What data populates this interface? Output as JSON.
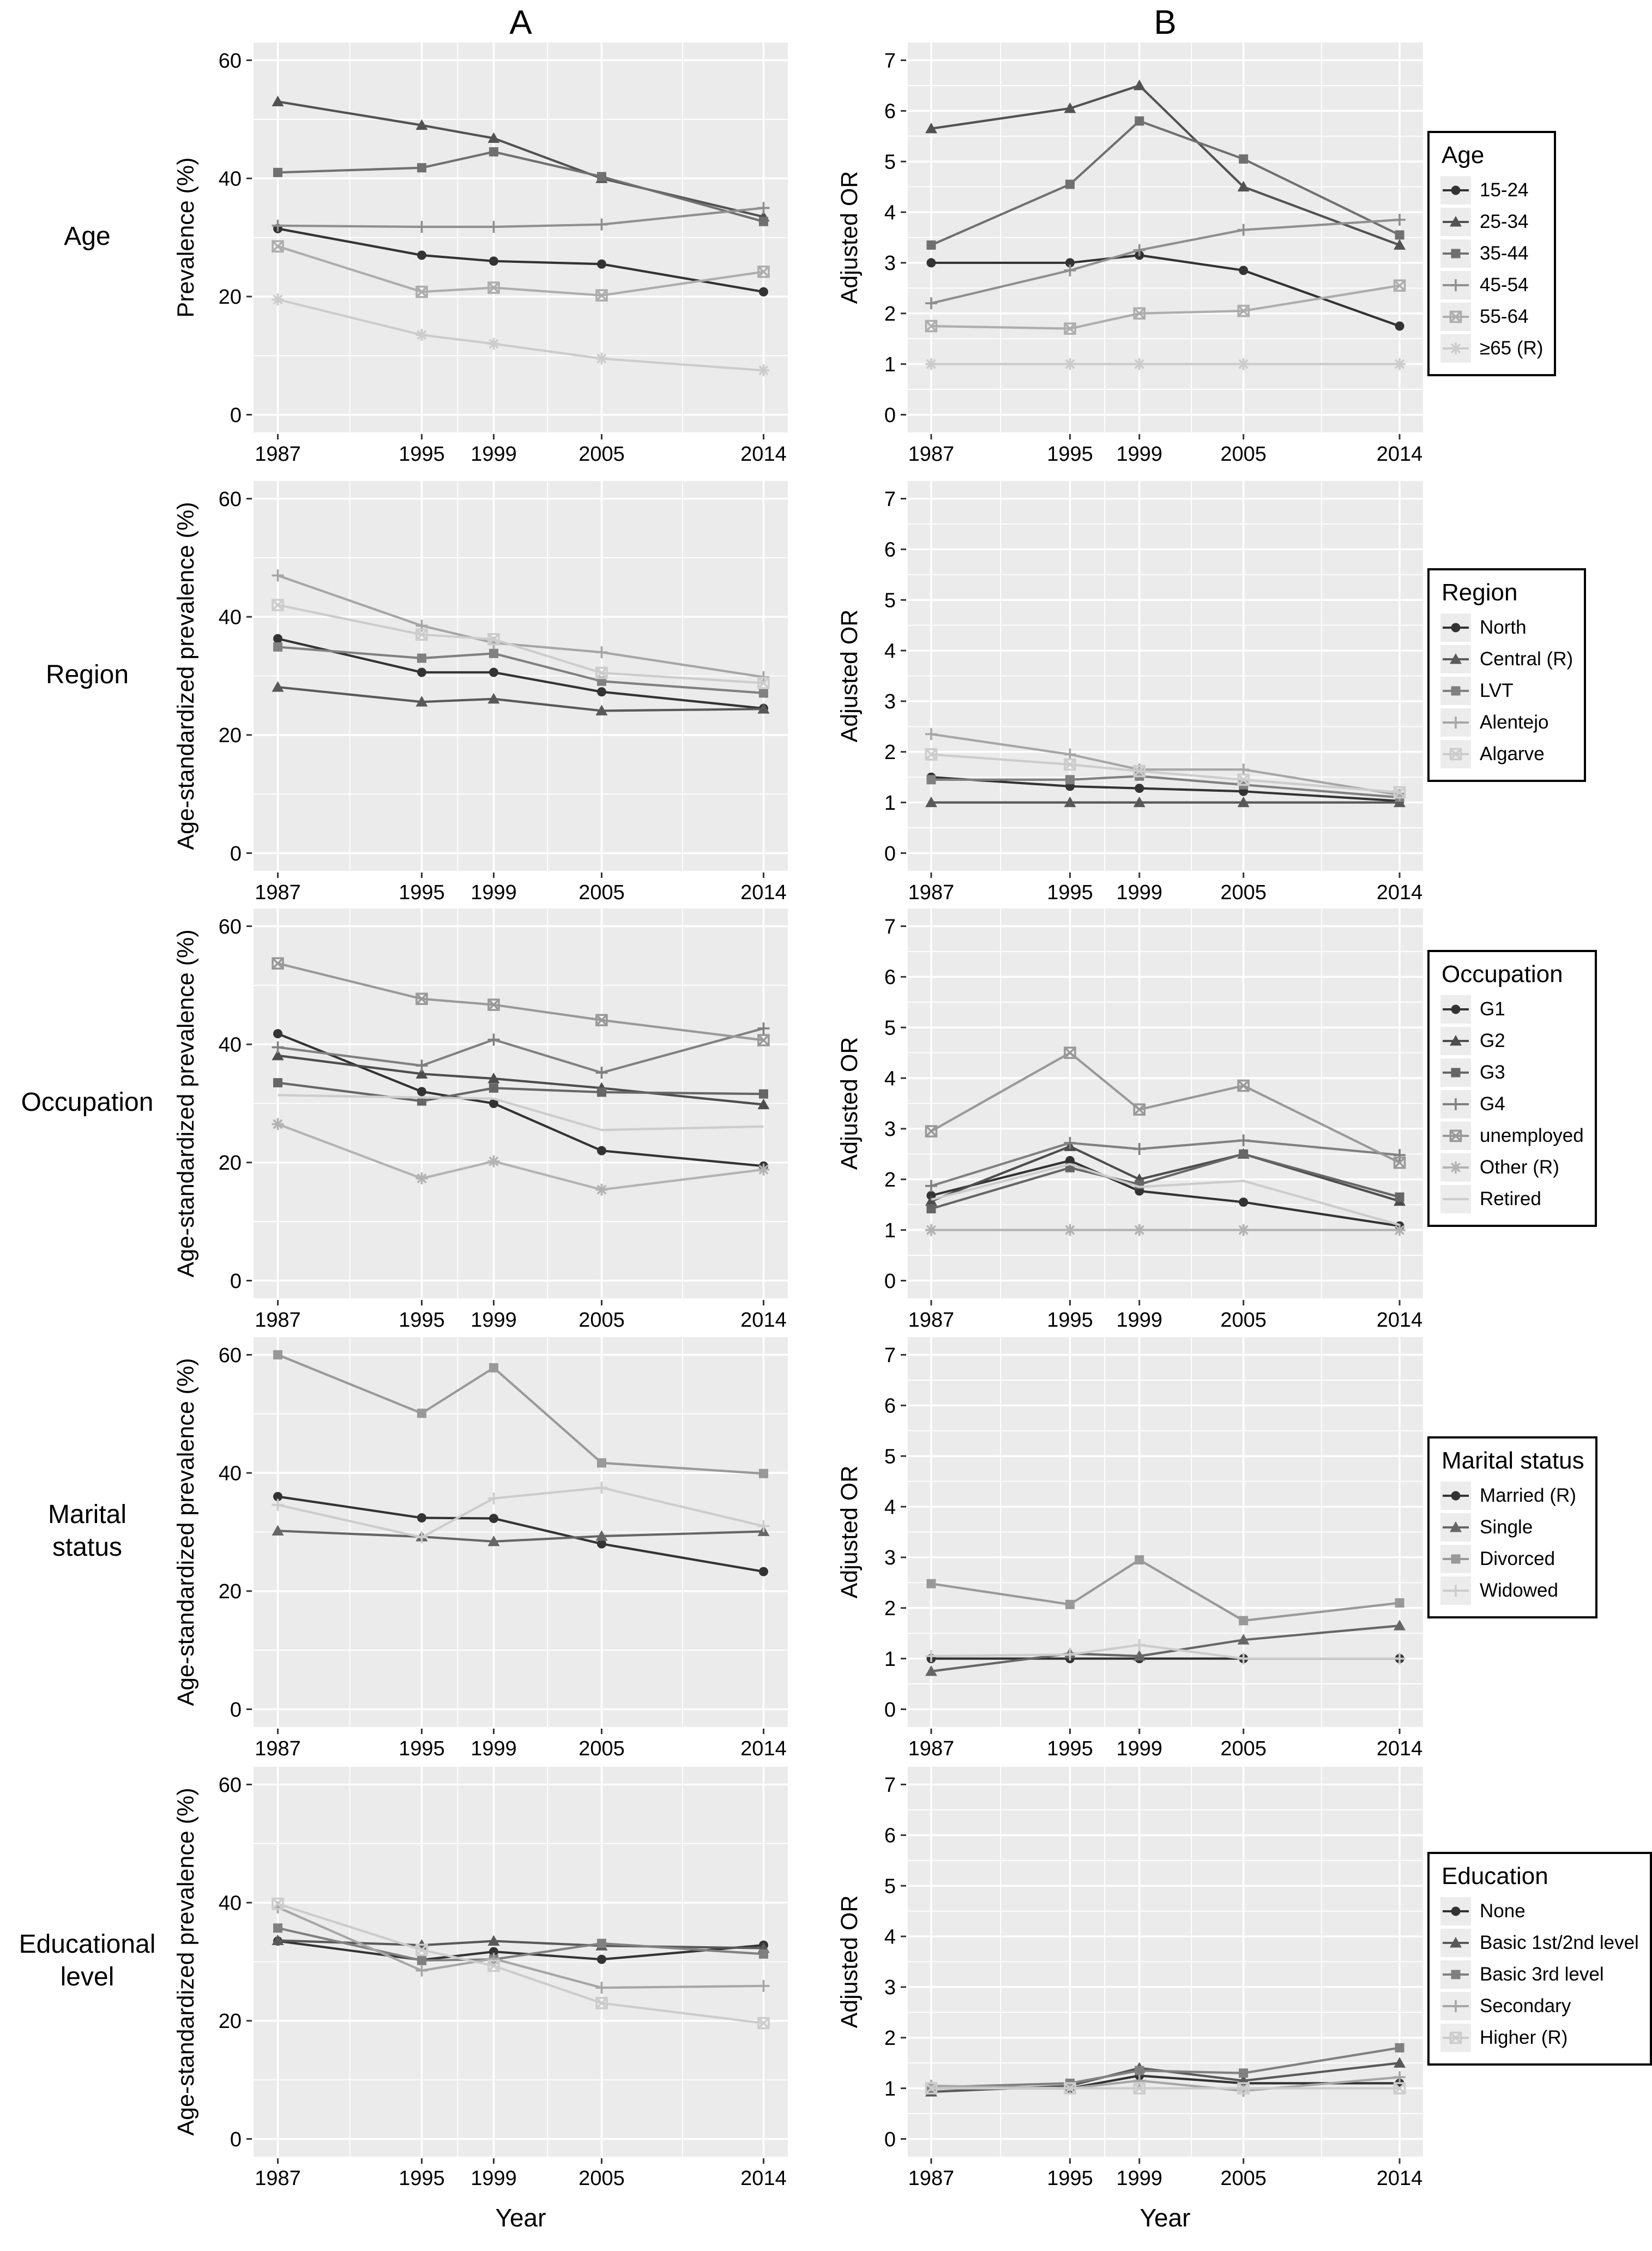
{
  "figure": {
    "panel_a_title": "A",
    "panel_b_title": "B",
    "x_label": "Year",
    "panel_background": "#EBEBEB",
    "gridline_color": "#FFFFFF",
    "rows": [
      {
        "label": "Age",
        "legend_title": "Age"
      },
      {
        "label": "Region",
        "legend_title": "Region"
      },
      {
        "label": "Occupation",
        "legend_title": "Occupation"
      },
      {
        "label": "Marital\nstatus",
        "legend_title": "Marital status"
      },
      {
        "label": "Educational\nlevel",
        "legend_title": "Education"
      }
    ]
  },
  "chart_data": [
    {
      "id": "age-a",
      "row": "Age",
      "panel": "A",
      "type": "line",
      "ylabel": "Prevalence (%)",
      "xlabel": "Year",
      "x": [
        1987,
        1995,
        1999,
        2005,
        2014
      ],
      "ylim": [
        0,
        60
      ],
      "yticks": [
        0,
        20,
        40,
        60
      ],
      "series": [
        {
          "name": "15-24",
          "marker": "circle",
          "color": "#333333",
          "values": [
            31.5,
            27.0,
            26.0,
            25.5,
            20.8
          ]
        },
        {
          "name": "25-34",
          "marker": "triangle",
          "color": "#525252",
          "values": [
            53.0,
            49.0,
            46.8,
            40.0,
            33.5
          ]
        },
        {
          "name": "35-44",
          "marker": "square",
          "color": "#707070",
          "values": [
            41.0,
            41.8,
            44.5,
            40.3,
            32.7
          ]
        },
        {
          "name": "45-54",
          "marker": "plus",
          "color": "#8F8F8F",
          "values": [
            32.0,
            31.8,
            31.8,
            32.2,
            35.0
          ]
        },
        {
          "name": "55-64",
          "marker": "boxx",
          "color": "#ADADAD",
          "values": [
            28.5,
            20.8,
            21.5,
            20.2,
            24.2
          ]
        },
        {
          "name": "≥65 (R)",
          "marker": "asterisk",
          "color": "#CCCCCC",
          "values": [
            19.5,
            13.5,
            12.0,
            9.5,
            7.5
          ]
        }
      ]
    },
    {
      "id": "age-b",
      "row": "Age",
      "panel": "B",
      "type": "line",
      "ylabel": "Adjusted OR",
      "xlabel": "Year",
      "x": [
        1987,
        1995,
        1999,
        2005,
        2014
      ],
      "ylim": [
        0,
        7
      ],
      "yticks": [
        0,
        1,
        2,
        3,
        4,
        5,
        6,
        7
      ],
      "series": [
        {
          "name": "15-24",
          "marker": "circle",
          "color": "#333333",
          "values": [
            3.0,
            3.0,
            3.15,
            2.85,
            1.75
          ]
        },
        {
          "name": "25-34",
          "marker": "triangle",
          "color": "#525252",
          "values": [
            5.65,
            6.05,
            6.5,
            4.5,
            3.35
          ]
        },
        {
          "name": "35-44",
          "marker": "square",
          "color": "#707070",
          "values": [
            3.35,
            4.55,
            5.8,
            5.05,
            3.55
          ]
        },
        {
          "name": "45-54",
          "marker": "plus",
          "color": "#8F8F8F",
          "values": [
            2.2,
            2.85,
            3.25,
            3.65,
            3.85
          ]
        },
        {
          "name": "55-64",
          "marker": "boxx",
          "color": "#ADADAD",
          "values": [
            1.75,
            1.7,
            2.0,
            2.05,
            2.55
          ]
        },
        {
          "name": "≥65 (R)",
          "marker": "asterisk",
          "color": "#CCCCCC",
          "values": [
            1.0,
            1.0,
            1.0,
            1.0,
            1.0
          ]
        }
      ]
    },
    {
      "id": "region-a",
      "row": "Region",
      "panel": "A",
      "type": "line",
      "ylabel": "Age-standardized prevalence (%)",
      "xlabel": "Year",
      "x": [
        1987,
        1995,
        1999,
        2005,
        2014
      ],
      "ylim": [
        0,
        60
      ],
      "yticks": [
        0,
        20,
        40,
        60
      ],
      "series": [
        {
          "name": "North",
          "marker": "circle",
          "color": "#333333",
          "values": [
            36.3,
            30.6,
            30.6,
            27.3,
            24.5
          ]
        },
        {
          "name": "Central (R)",
          "marker": "triangle",
          "color": "#595959",
          "values": [
            28.1,
            25.6,
            26.1,
            24.1,
            24.4
          ]
        },
        {
          "name": "LVT",
          "marker": "square",
          "color": "#808080",
          "values": [
            34.9,
            33.0,
            33.8,
            29.1,
            27.1
          ]
        },
        {
          "name": "Alentejo",
          "marker": "plus",
          "color": "#A6A6A6",
          "values": [
            47.0,
            38.5,
            35.6,
            34.0,
            29.8
          ]
        },
        {
          "name": "Algarve",
          "marker": "boxx",
          "color": "#CCCCCC",
          "values": [
            42.0,
            37.0,
            36.2,
            30.5,
            28.8
          ]
        }
      ]
    },
    {
      "id": "region-b",
      "row": "Region",
      "panel": "B",
      "type": "line",
      "ylabel": "Adjusted OR",
      "xlabel": "Year",
      "x": [
        1987,
        1995,
        1999,
        2005,
        2014
      ],
      "ylim": [
        0,
        7
      ],
      "yticks": [
        0,
        1,
        2,
        3,
        4,
        5,
        6,
        7
      ],
      "series": [
        {
          "name": "North",
          "marker": "circle",
          "color": "#333333",
          "values": [
            1.5,
            1.32,
            1.28,
            1.22,
            1.03
          ]
        },
        {
          "name": "Central (R)",
          "marker": "triangle",
          "color": "#595959",
          "values": [
            1.0,
            1.0,
            1.0,
            1.0,
            1.0
          ]
        },
        {
          "name": "LVT",
          "marker": "square",
          "color": "#808080",
          "values": [
            1.45,
            1.45,
            1.52,
            1.35,
            1.1
          ]
        },
        {
          "name": "Alentejo",
          "marker": "plus",
          "color": "#A6A6A6",
          "values": [
            2.35,
            1.95,
            1.65,
            1.65,
            1.15
          ]
        },
        {
          "name": "Algarve",
          "marker": "boxx",
          "color": "#CCCCCC",
          "values": [
            1.95,
            1.75,
            1.62,
            1.45,
            1.2
          ]
        }
      ]
    },
    {
      "id": "occupation-a",
      "row": "Occupation",
      "panel": "A",
      "type": "line",
      "ylabel": "Age-standardized prevalence (%)",
      "xlabel": "Year",
      "x": [
        1987,
        1995,
        1999,
        2005,
        2014
      ],
      "ylim": [
        0,
        60
      ],
      "yticks": [
        0,
        20,
        40,
        60
      ],
      "series": [
        {
          "name": "G1",
          "marker": "circle",
          "color": "#333333",
          "values": [
            41.8,
            32.0,
            30.0,
            22.0,
            19.4
          ]
        },
        {
          "name": "G2",
          "marker": "triangle",
          "color": "#4D4D4D",
          "values": [
            38.1,
            35.0,
            34.2,
            32.6,
            29.8
          ]
        },
        {
          "name": "G3",
          "marker": "square",
          "color": "#666666",
          "values": [
            33.5,
            30.4,
            32.6,
            31.9,
            31.6
          ]
        },
        {
          "name": "G4",
          "marker": "plus",
          "color": "#808080",
          "values": [
            39.5,
            36.4,
            40.8,
            35.2,
            42.7
          ]
        },
        {
          "name": "unemployed",
          "marker": "boxx",
          "color": "#999999",
          "values": [
            53.7,
            47.7,
            46.7,
            44.1,
            40.7
          ]
        },
        {
          "name": "Other (R)",
          "marker": "asterisk",
          "color": "#B3B3B3",
          "values": [
            26.5,
            17.3,
            20.2,
            15.4,
            18.8
          ]
        },
        {
          "name": "Retired",
          "marker": "none",
          "color": "#CCCCCC",
          "values": [
            31.4,
            31.0,
            30.8,
            25.5,
            26.1
          ]
        }
      ]
    },
    {
      "id": "occupation-b",
      "row": "Occupation",
      "panel": "B",
      "type": "line",
      "ylabel": "Adjusted OR",
      "xlabel": "Year",
      "x": [
        1987,
        1995,
        1999,
        2005,
        2014
      ],
      "ylim": [
        0,
        7
      ],
      "yticks": [
        0,
        1,
        2,
        3,
        4,
        5,
        6,
        7
      ],
      "series": [
        {
          "name": "G1",
          "marker": "circle",
          "color": "#333333",
          "values": [
            1.68,
            2.37,
            1.77,
            1.55,
            1.08
          ]
        },
        {
          "name": "G2",
          "marker": "triangle",
          "color": "#4D4D4D",
          "values": [
            1.57,
            2.65,
            2.0,
            2.5,
            1.57
          ]
        },
        {
          "name": "G3",
          "marker": "square",
          "color": "#666666",
          "values": [
            1.42,
            2.23,
            1.9,
            2.5,
            1.65
          ]
        },
        {
          "name": "G4",
          "marker": "plus",
          "color": "#808080",
          "values": [
            1.87,
            2.72,
            2.6,
            2.77,
            2.48
          ]
        },
        {
          "name": "unemployed",
          "marker": "boxx",
          "color": "#999999",
          "values": [
            2.95,
            4.5,
            3.38,
            3.85,
            2.33
          ]
        },
        {
          "name": "Other (R)",
          "marker": "asterisk",
          "color": "#B3B3B3",
          "values": [
            1.0,
            1.0,
            1.0,
            1.0,
            1.0
          ]
        },
        {
          "name": "Retired",
          "marker": "none",
          "color": "#CCCCCC",
          "values": [
            1.6,
            2.3,
            1.85,
            1.97,
            1.1
          ]
        }
      ]
    },
    {
      "id": "marital-a",
      "row": "Marital status",
      "panel": "A",
      "type": "line",
      "ylabel": "Age-standardized prevalence (%)",
      "xlabel": "Year",
      "x": [
        1987,
        1995,
        1999,
        2005,
        2014
      ],
      "ylim": [
        0,
        60
      ],
      "yticks": [
        0,
        20,
        40,
        60
      ],
      "series": [
        {
          "name": "Married (R)",
          "marker": "circle",
          "color": "#333333",
          "values": [
            36.0,
            32.4,
            32.3,
            28.0,
            23.3
          ]
        },
        {
          "name": "Single",
          "marker": "triangle",
          "color": "#666666",
          "values": [
            30.2,
            29.2,
            28.4,
            29.3,
            30.1
          ]
        },
        {
          "name": "Divorced",
          "marker": "square",
          "color": "#999999",
          "values": [
            60.0,
            50.1,
            57.8,
            41.7,
            39.9
          ]
        },
        {
          "name": "Widowed",
          "marker": "plus",
          "color": "#CCCCCC",
          "values": [
            34.6,
            29.1,
            35.7,
            37.5,
            31.0
          ]
        }
      ]
    },
    {
      "id": "marital-b",
      "row": "Marital status",
      "panel": "B",
      "type": "line",
      "ylabel": "Adjusted OR",
      "xlabel": "Year",
      "x": [
        1987,
        1995,
        1999,
        2005,
        2014
      ],
      "ylim": [
        0,
        7
      ],
      "yticks": [
        0,
        1,
        2,
        3,
        4,
        5,
        6,
        7
      ],
      "series": [
        {
          "name": "Married (R)",
          "marker": "circle",
          "color": "#333333",
          "values": [
            1.0,
            1.0,
            1.0,
            1.0,
            1.0
          ]
        },
        {
          "name": "Single",
          "marker": "triangle",
          "color": "#666666",
          "values": [
            0.75,
            1.1,
            1.05,
            1.37,
            1.65
          ]
        },
        {
          "name": "Divorced",
          "marker": "square",
          "color": "#999999",
          "values": [
            2.48,
            2.07,
            2.95,
            1.75,
            2.1
          ]
        },
        {
          "name": "Widowed",
          "marker": "plus",
          "color": "#CCCCCC",
          "values": [
            1.05,
            1.08,
            1.27,
            1.0,
            1.0
          ]
        }
      ]
    },
    {
      "id": "education-a",
      "row": "Educational level",
      "panel": "A",
      "type": "line",
      "ylabel": "Age-standardized prevalence (%)",
      "xlabel": "Year",
      "x": [
        1987,
        1995,
        1999,
        2005,
        2014
      ],
      "ylim": [
        0,
        60
      ],
      "yticks": [
        0,
        20,
        40,
        60
      ],
      "series": [
        {
          "name": "None",
          "marker": "circle",
          "color": "#333333",
          "values": [
            33.5,
            30.3,
            31.7,
            30.4,
            32.8
          ]
        },
        {
          "name": "Basic 1st/2nd level",
          "marker": "triangle",
          "color": "#595959",
          "values": [
            33.6,
            32.8,
            33.5,
            32.7,
            32.3
          ]
        },
        {
          "name": "Basic 3rd level",
          "marker": "square",
          "color": "#808080",
          "values": [
            35.7,
            30.2,
            30.4,
            33.1,
            31.3
          ]
        },
        {
          "name": "Secondary",
          "marker": "plus",
          "color": "#A6A6A6",
          "values": [
            39.2,
            28.5,
            30.5,
            25.6,
            25.9
          ]
        },
        {
          "name": "Higher (R)",
          "marker": "boxx",
          "color": "#CCCCCC",
          "values": [
            39.8,
            32.0,
            29.3,
            23.0,
            19.6
          ]
        }
      ]
    },
    {
      "id": "education-b",
      "row": "Educational level",
      "panel": "B",
      "type": "line",
      "ylabel": "Adjusted OR",
      "xlabel": "Year",
      "x": [
        1987,
        1995,
        1999,
        2005,
        2014
      ],
      "ylim": [
        0,
        7
      ],
      "yticks": [
        0,
        1,
        2,
        3,
        4,
        5,
        6,
        7
      ],
      "series": [
        {
          "name": "None",
          "marker": "circle",
          "color": "#333333",
          "values": [
            1.0,
            1.0,
            1.25,
            1.1,
            1.1
          ]
        },
        {
          "name": "Basic 1st/2nd level",
          "marker": "triangle",
          "color": "#595959",
          "values": [
            0.93,
            1.05,
            1.4,
            1.15,
            1.5
          ]
        },
        {
          "name": "Basic 3rd level",
          "marker": "square",
          "color": "#808080",
          "values": [
            1.02,
            1.1,
            1.35,
            1.3,
            1.8
          ]
        },
        {
          "name": "Secondary",
          "marker": "plus",
          "color": "#A6A6A6",
          "values": [
            1.05,
            1.0,
            1.15,
            0.95,
            1.22
          ]
        },
        {
          "name": "Higher (R)",
          "marker": "boxx",
          "color": "#CCCCCC",
          "values": [
            1.0,
            1.0,
            1.0,
            1.0,
            1.0
          ]
        }
      ]
    }
  ]
}
